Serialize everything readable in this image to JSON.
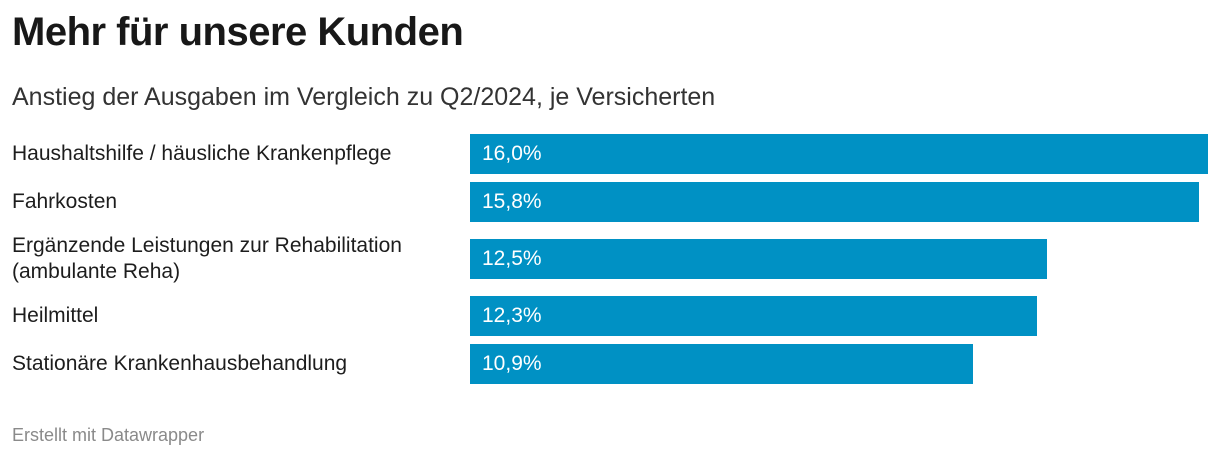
{
  "title": "Mehr für unsere Kunden",
  "subtitle": "Anstieg der Ausgaben im Vergleich zu Q2/2024, je Versicherten",
  "footer": "Erstellt mit Datawrapper",
  "colors": {
    "bar": "#0091c4"
  },
  "chart_data": {
    "type": "bar",
    "orientation": "horizontal",
    "title": "Mehr für unsere Kunden",
    "subtitle": "Anstieg der Ausgaben im Vergleich zu Q2/2024, je Versicherten",
    "categories": [
      "Haushaltshilfe / häusliche Krankenpflege",
      "Fahrkosten",
      "Ergänzende Leistungen zur Rehabilitation (ambulante Reha)",
      "Heilmittel",
      "Stationäre Krankenhausbehandlung"
    ],
    "values": [
      16.0,
      15.8,
      12.5,
      12.3,
      10.9
    ],
    "value_labels": [
      "16,0%",
      "15,8%",
      "12,5%",
      "12,3%",
      "10,9%"
    ],
    "unit": "%",
    "xlim": [
      0,
      16.0
    ],
    "grid": false,
    "legend": "none"
  }
}
